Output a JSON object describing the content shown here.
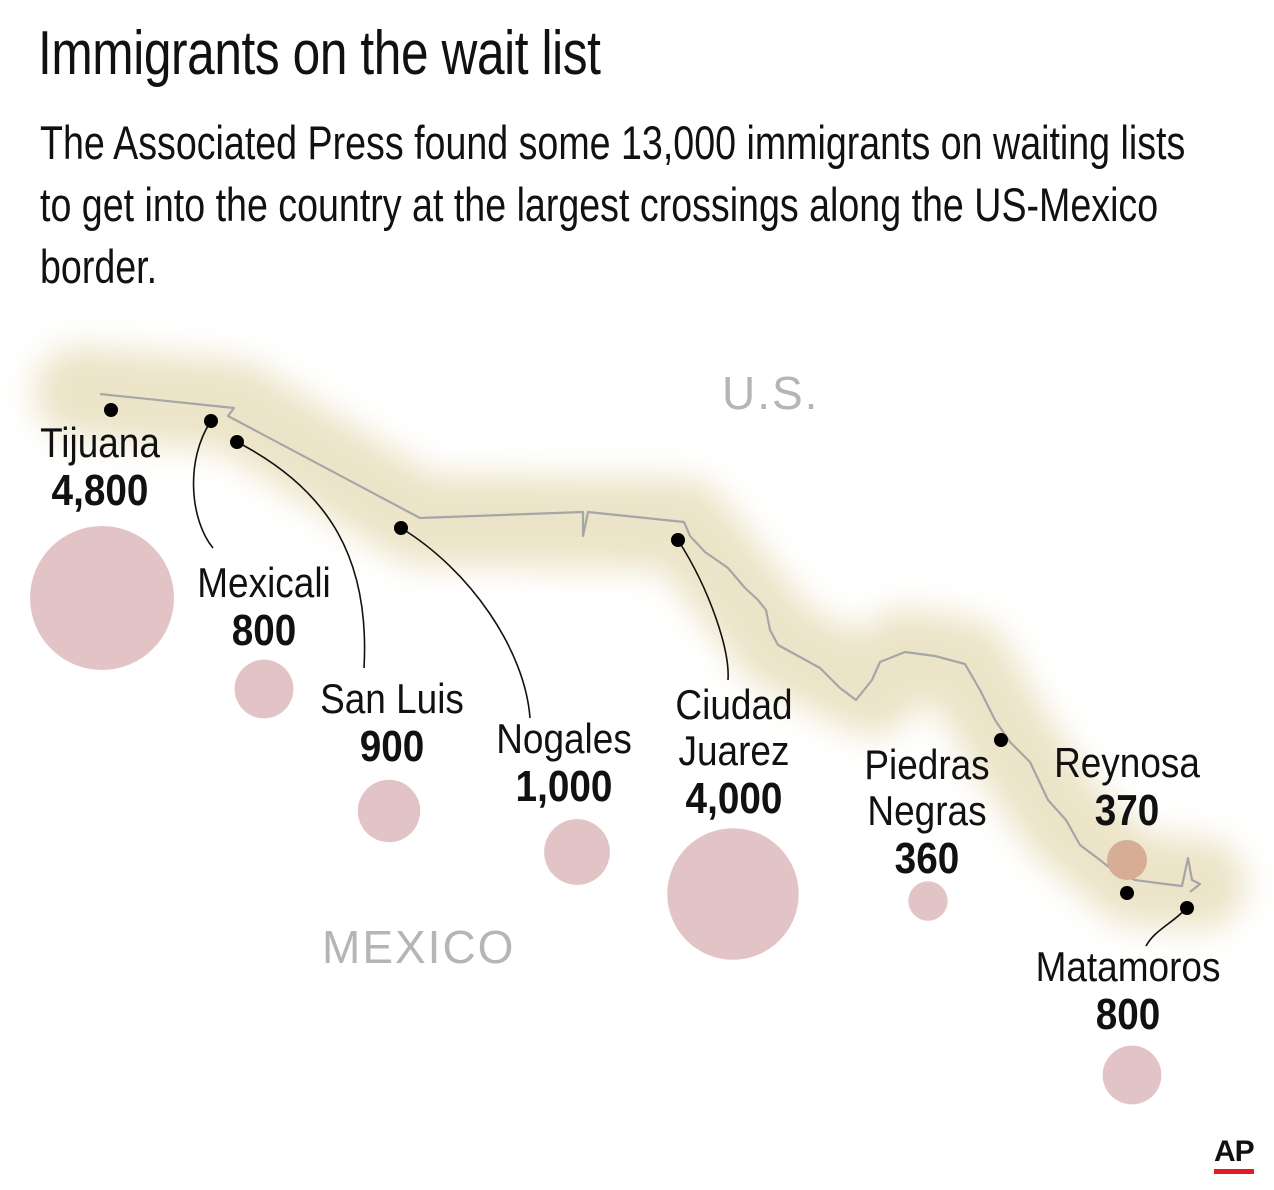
{
  "title": "Immigrants on the wait list",
  "subtitle": "The Associated Press found some 13,000 immigrants on waiting lists to get into the country at the largest crossings along the US-Mexico border.",
  "labels": {
    "us": "U.S.",
    "mexico": "MEXICO"
  },
  "credit": "AP",
  "colors": {
    "bubble": "#e3c4c6",
    "bubble_highlight": "#d7ad95",
    "border_band": "#ece4c8",
    "border_line": "#a6a6a6"
  },
  "chart_data": {
    "type": "proportional-symbol-map",
    "title": "Immigrants on the wait list",
    "unit": "immigrants on waiting lists",
    "total_approx": "13,000",
    "series": [
      {
        "name": "Tijuana",
        "name_lines": [
          "Tijuana"
        ],
        "value": 4800,
        "value_label": "4,800"
      },
      {
        "name": "Mexicali",
        "name_lines": [
          "Mexicali"
        ],
        "value": 800,
        "value_label": "800"
      },
      {
        "name": "San Luis",
        "name_lines": [
          "San Luis"
        ],
        "value": 900,
        "value_label": "900"
      },
      {
        "name": "Nogales",
        "name_lines": [
          "Nogales"
        ],
        "value": 1000,
        "value_label": "1,000"
      },
      {
        "name": "Ciudad Juarez",
        "name_lines": [
          "Ciudad",
          "Juarez"
        ],
        "value": 4000,
        "value_label": "4,000"
      },
      {
        "name": "Piedras Negras",
        "name_lines": [
          "Piedras",
          "Negras"
        ],
        "value": 360,
        "value_label": "360"
      },
      {
        "name": "Reynosa",
        "name_lines": [
          "Reynosa"
        ],
        "value": 370,
        "value_label": "370"
      },
      {
        "name": "Matamoros",
        "name_lines": [
          "Matamoros"
        ],
        "value": 800,
        "value_label": "800"
      }
    ]
  }
}
